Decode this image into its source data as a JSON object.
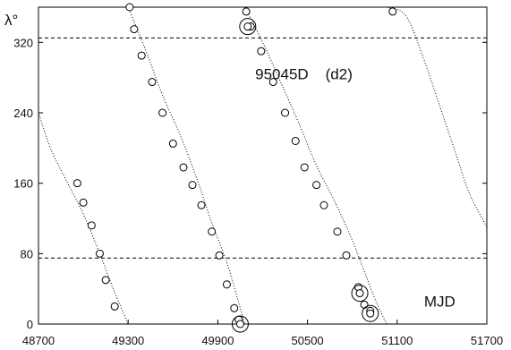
{
  "chart_data": {
    "type": "scatter",
    "title": "",
    "xlabel": "MJD",
    "ylabel": "λ°",
    "xlim": [
      48700,
      51700
    ],
    "ylim": [
      0,
      360
    ],
    "xticks": [
      48700,
      49300,
      49900,
      50500,
      51100,
      51700
    ],
    "yticks": [
      0,
      80,
      160,
      240,
      320
    ],
    "grid": false,
    "annotations": [
      {
        "text": "95045D",
        "x": 50150,
        "y": 278
      },
      {
        "text": "(d2)",
        "x": 50620,
        "y": 278
      },
      {
        "text": "MJD",
        "x": 51280,
        "y": 20
      }
    ],
    "hlines": [
      75,
      325
    ],
    "curves": [
      [
        [
          48700,
          240
        ],
        [
          48780,
          200
        ],
        [
          48880,
          165
        ],
        [
          49000,
          125
        ],
        [
          49110,
          80
        ],
        [
          49200,
          40
        ],
        [
          49300,
          0
        ]
      ],
      [
        [
          49300,
          360
        ],
        [
          49420,
          310
        ],
        [
          49530,
          260
        ],
        [
          49660,
          210
        ],
        [
          49770,
          160
        ],
        [
          49860,
          115
        ],
        [
          49960,
          70
        ],
        [
          50030,
          30
        ],
        [
          50080,
          0
        ]
      ],
      [
        [
          50080,
          360
        ],
        [
          50200,
          320
        ],
        [
          50320,
          275
        ],
        [
          50450,
          225
        ],
        [
          50560,
          180
        ],
        [
          50680,
          140
        ],
        [
          50800,
          95
        ],
        [
          50880,
          60
        ],
        [
          50960,
          25
        ],
        [
          51030,
          0
        ]
      ],
      [
        [
          51030,
          360
        ],
        [
          51160,
          350
        ],
        [
          51280,
          300
        ],
        [
          51380,
          250
        ],
        [
          51480,
          200
        ],
        [
          51580,
          150
        ],
        [
          51700,
          110
        ]
      ]
    ],
    "series": [
      {
        "values": [
          [
            48960,
            160
          ],
          [
            49000,
            138
          ],
          [
            49055,
            112
          ],
          [
            49110,
            80
          ],
          [
            49150,
            50
          ],
          [
            49210,
            20
          ],
          [
            49310,
            360
          ],
          [
            49340,
            335
          ],
          [
            49390,
            305
          ],
          [
            49460,
            275
          ],
          [
            49530,
            240
          ],
          [
            49600,
            205
          ],
          [
            49670,
            178
          ],
          [
            49730,
            158
          ],
          [
            49790,
            135
          ],
          [
            49860,
            105
          ],
          [
            49910,
            78
          ],
          [
            49960,
            45
          ],
          [
            50010,
            18
          ],
          [
            50040,
            5
          ],
          [
            50090,
            355
          ],
          [
            50120,
            338
          ],
          [
            50190,
            310
          ],
          [
            50270,
            275
          ],
          [
            50350,
            240
          ],
          [
            50420,
            208
          ],
          [
            50480,
            178
          ],
          [
            50560,
            158
          ],
          [
            50610,
            135
          ],
          [
            50700,
            105
          ],
          [
            50760,
            78
          ],
          [
            50840,
            42
          ],
          [
            50880,
            22
          ],
          [
            50920,
            15
          ],
          [
            51070,
            355
          ]
        ]
      }
    ],
    "large_circles": [
      [
        50100,
        338
      ],
      [
        50050,
        0
      ],
      [
        50850,
        35
      ],
      [
        50920,
        12
      ]
    ]
  }
}
